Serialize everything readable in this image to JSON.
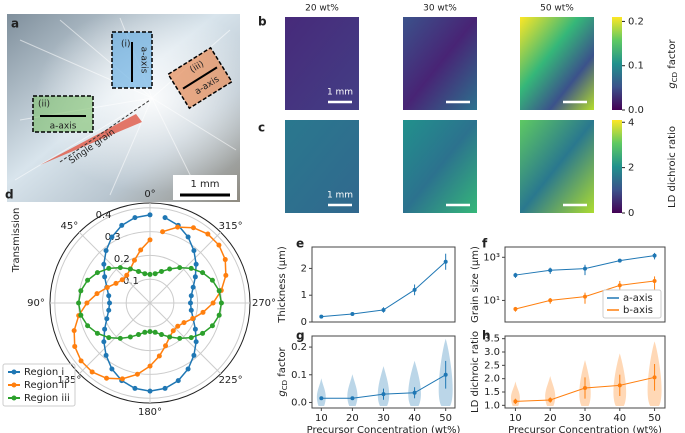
{
  "figure": {
    "a": {
      "label": "a",
      "annotations": [
        "(i)",
        "a-axis",
        "(ii)",
        "a-axis",
        "(iii)",
        "a-axis",
        "Single grain"
      ],
      "scale_bar": "1 mm"
    },
    "b": {
      "label": "b",
      "column_titles": [
        "20 wt%",
        "30 wt%",
        "50 wt%"
      ],
      "scale_bar": "1 mm",
      "colorbar": {
        "label": {
          "symbol": "g",
          "subscript": "CD",
          "suffix": " factor"
        },
        "lim": [
          0,
          0.21
        ],
        "ticks": [
          {
            "value": 0,
            "label": "0.0"
          },
          0.1,
          0.2
        ]
      }
    },
    "c": {
      "label": "c",
      "scale_bar": "1 mm",
      "colorbar": {
        "label": "LD dichroic ratio",
        "lim": [
          0,
          4.1
        ],
        "ticks": [
          0,
          2,
          4
        ]
      }
    }
  },
  "chart_data": [
    {
      "type": "polar",
      "label": "d",
      "ylabel": "Transmission",
      "theta": [
        0,
        10,
        20,
        30,
        40,
        50,
        60,
        70,
        80,
        90,
        100,
        110,
        120,
        130,
        140,
        150,
        160,
        170,
        180,
        190,
        200,
        210,
        220,
        230,
        240,
        250,
        260,
        270,
        280,
        290,
        300,
        310,
        320,
        330,
        340,
        350
      ],
      "rlim": [
        0,
        0.42
      ],
      "rticks": [
        0.1,
        0.2,
        0.3,
        0.4
      ],
      "thetaticks": [
        {
          "value": 0,
          "label": "0°"
        },
        {
          "value": 45,
          "label": "45°"
        },
        {
          "value": 90,
          "label": "90°"
        },
        {
          "value": 135,
          "label": "135°"
        },
        {
          "value": 180,
          "label": "180°"
        },
        {
          "value": 225,
          "label": "225°"
        },
        {
          "value": 270,
          "label": "270°"
        },
        {
          "value": 315,
          "label": "315°"
        }
      ],
      "legend": "lower left",
      "series": [
        {
          "name": "Region i",
          "color": "#1f77b4",
          "values": [
            0.37,
            0.364,
            0.347,
            0.32,
            0.287,
            0.253,
            0.22,
            0.193,
            0.176,
            0.17,
            0.176,
            0.193,
            0.22,
            0.253,
            0.287,
            0.32,
            0.347,
            0.364,
            0.37,
            0.364,
            0.347,
            0.32,
            0.287,
            0.253,
            0.22,
            0.193,
            0.176,
            0.17,
            0.176,
            0.193,
            0.22,
            0.253,
            0.287,
            0.32,
            0.347,
            0.364
          ]
        },
        {
          "name": "Region ii",
          "color": "#ff7f0e",
          "values": [
            0.265,
            0.226,
            0.191,
            0.165,
            0.152,
            0.152,
            0.165,
            0.191,
            0.226,
            0.265,
            0.304,
            0.339,
            0.365,
            0.378,
            0.378,
            0.365,
            0.339,
            0.304,
            0.265,
            0.226,
            0.191,
            0.165,
            0.152,
            0.152,
            0.165,
            0.191,
            0.226,
            0.265,
            0.304,
            0.339,
            0.365,
            0.378,
            0.378,
            0.365,
            0.339,
            0.304
          ]
        },
        {
          "name": "Region iii",
          "color": "#2ca02c",
          "values": [
            0.12,
            0.125,
            0.141,
            0.165,
            0.194,
            0.226,
            0.255,
            0.279,
            0.295,
            0.3,
            0.295,
            0.279,
            0.255,
            0.226,
            0.194,
            0.165,
            0.141,
            0.125,
            0.12,
            0.125,
            0.141,
            0.165,
            0.194,
            0.226,
            0.255,
            0.279,
            0.295,
            0.3,
            0.295,
            0.279,
            0.255,
            0.226,
            0.194,
            0.165,
            0.141,
            0.125
          ]
        }
      ]
    },
    {
      "type": "line",
      "label": "e",
      "ylabel": "Thickness (μm)",
      "x": [
        10,
        20,
        30,
        40,
        50
      ],
      "xlim": [
        7,
        53
      ],
      "ylim": [
        0,
        2.8
      ],
      "yticks": [
        0,
        1,
        2
      ],
      "color": "#1f77b4",
      "values": [
        0.2,
        0.3,
        0.45,
        1.2,
        2.25
      ],
      "errors": [
        0.03,
        0.05,
        0.1,
        0.2,
        0.3
      ]
    },
    {
      "type": "line",
      "label": "f",
      "ylabel": "Grain size (μm)",
      "x": [
        10,
        20,
        30,
        40,
        50
      ],
      "xlim": [
        7,
        53
      ],
      "log": true,
      "ylim": [
        1,
        3000
      ],
      "yticks": [
        {
          "value": 10,
          "label": "10¹"
        },
        {
          "value": 1000,
          "label": "10³"
        }
      ],
      "legend": "lower right",
      "series": [
        {
          "name": "a-axis",
          "color": "#1f77b4",
          "values": [
            150,
            250,
            300,
            700,
            1200
          ],
          "errors": [
            40,
            80,
            150,
            100,
            400
          ]
        },
        {
          "name": "b-axis",
          "color": "#ff7f0e",
          "values": [
            4,
            10,
            15,
            50,
            80
          ],
          "errors": [
            1,
            3,
            8,
            30,
            50
          ]
        }
      ]
    },
    {
      "type": "violin",
      "label": "g",
      "ylabel": {
        "symbol": "g",
        "subscript": "CD",
        "suffix": " factor"
      },
      "xlabel": "Precursor Concentration (wt%)",
      "x": [
        10,
        20,
        30,
        40,
        50
      ],
      "xlim": [
        7,
        53
      ],
      "xticks": [
        10,
        20,
        30,
        40,
        50
      ],
      "ylim": [
        -0.02,
        0.24
      ],
      "yticks": [
        {
          "value": 0,
          "label": "0.0"
        },
        0.1,
        0.2
      ],
      "color": "#1f77b4",
      "values": [
        0.015,
        0.015,
        0.03,
        0.035,
        0.1
      ],
      "errors": [
        0.005,
        0.006,
        0.02,
        0.02,
        0.05
      ]
    },
    {
      "type": "violin",
      "label": "h",
      "ylabel": "LD dichroic ratio",
      "xlabel": "Precursor Concentration (wt%)",
      "x": [
        10,
        20,
        30,
        40,
        50
      ],
      "xlim": [
        7,
        53
      ],
      "xticks": [
        10,
        20,
        30,
        40,
        50
      ],
      "ylim": [
        0.9,
        3.6
      ],
      "yticks": [
        {
          "value": 1,
          "label": "1.0"
        },
        1.5,
        {
          "value": 2,
          "label": "2.0"
        },
        2.5,
        {
          "value": 3,
          "label": "3.0"
        },
        3.5
      ],
      "color": "#ff7f0e",
      "values": [
        1.15,
        1.2,
        1.65,
        1.75,
        2.05
      ],
      "errors": [
        0.1,
        0.1,
        0.4,
        0.4,
        0.5
      ]
    }
  ]
}
